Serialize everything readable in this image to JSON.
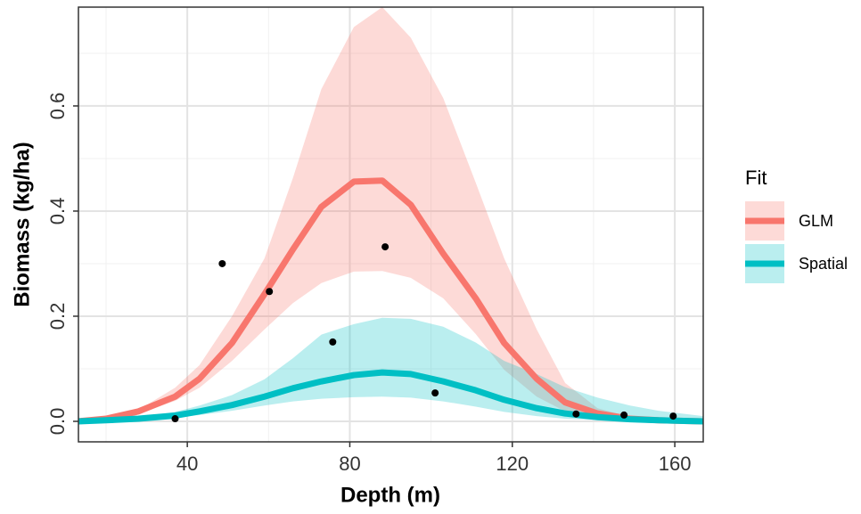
{
  "chart_data": {
    "type": "line",
    "x_label": "Depth (m)",
    "y_label": "Biomass (kg/ha)",
    "xlim": [
      13.2,
      167
    ],
    "ylim": [
      -0.039,
      0.788
    ],
    "xticks": [
      40,
      80,
      120,
      160
    ],
    "yticks": [
      {
        "value": 0,
        "label": "0.0"
      },
      {
        "value": 0.2,
        "label": "0.2"
      },
      {
        "value": 0.4,
        "label": "0.4"
      },
      {
        "value": 0.6,
        "label": "0.6"
      }
    ],
    "xminor": [
      20,
      60,
      100,
      140
    ],
    "yminor": [
      0.1,
      0.3,
      0.5,
      0.7
    ],
    "grid": true,
    "legend_title": "Fit",
    "legend_position": "right",
    "x": [
      13,
      20,
      28,
      37,
      43,
      51,
      59,
      66,
      73,
      81,
      88,
      95,
      103,
      111,
      118,
      126,
      133,
      141,
      149,
      156,
      167
    ],
    "series": [
      {
        "name": "GLM",
        "color": "#F8766D",
        "values": [
          0,
          0.005,
          0.019,
          0.047,
          0.081,
          0.149,
          0.242,
          0.327,
          0.408,
          0.456,
          0.458,
          0.412,
          0.319,
          0.234,
          0.149,
          0.081,
          0.036,
          0.015,
          0.005,
          0.002,
          0
        ],
        "upper": [
          0,
          0.008,
          0.022,
          0.064,
          0.107,
          0.2,
          0.31,
          0.463,
          0.632,
          0.75,
          0.788,
          0.73,
          0.615,
          0.454,
          0.31,
          0.175,
          0.073,
          0.025,
          0.008,
          0.003,
          0
        ],
        "lower": [
          0,
          0.003,
          0.014,
          0.039,
          0.064,
          0.115,
          0.175,
          0.225,
          0.263,
          0.285,
          0.286,
          0.273,
          0.234,
          0.166,
          0.098,
          0.047,
          0.019,
          0.007,
          0.003,
          0.001,
          0
        ]
      },
      {
        "name": "Spatial",
        "color": "#00BFC4",
        "values": [
          0,
          0.002,
          0.005,
          0.011,
          0.019,
          0.031,
          0.047,
          0.063,
          0.076,
          0.088,
          0.093,
          0.09,
          0.076,
          0.059,
          0.041,
          0.025,
          0.015,
          0.008,
          0.004,
          0.002,
          0
        ],
        "upper": [
          0,
          0.003,
          0.008,
          0.018,
          0.03,
          0.05,
          0.08,
          0.12,
          0.165,
          0.185,
          0.197,
          0.195,
          0.18,
          0.15,
          0.115,
          0.09,
          0.065,
          0.045,
          0.03,
          0.02,
          0.01
        ],
        "lower": [
          0,
          0.001,
          0.003,
          0.007,
          0.012,
          0.02,
          0.03,
          0.038,
          0.043,
          0.046,
          0.047,
          0.045,
          0.038,
          0.028,
          0.018,
          0.01,
          0.005,
          0.002,
          0.001,
          0,
          0
        ]
      }
    ],
    "points": {
      "color": "#000000",
      "x": [
        37,
        48.6,
        60.2,
        75.8,
        88.7,
        101,
        135.7,
        147.5,
        159.6
      ],
      "y": [
        0.005,
        0.3,
        0.247,
        0.151,
        0.332,
        0.054,
        0.014,
        0.012,
        0.01
      ]
    }
  }
}
